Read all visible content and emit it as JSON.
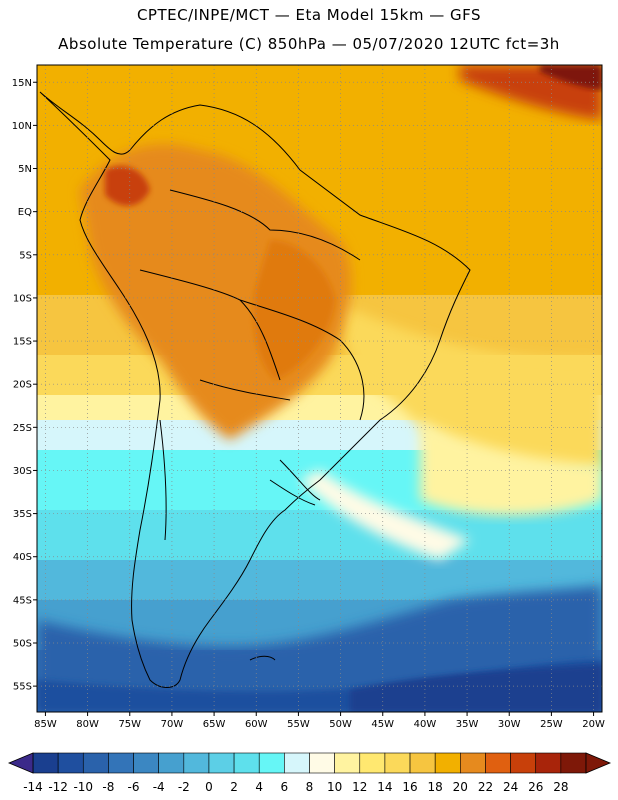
{
  "header": {
    "line1": "CPTEC/INPE/MCT —  Eta Model 15km — GFS",
    "line2": "Absolute Temperature (C) 850hPa — 05/07/2020 12UTC fct=3h"
  },
  "map": {
    "region": "South America",
    "lon_range": [
      -86,
      -19
    ],
    "lat_range": [
      -58,
      17
    ],
    "grid": true,
    "lat_labels": [
      "15N",
      "10N",
      "5N",
      "EQ",
      "5S",
      "10S",
      "15S",
      "20S",
      "25S",
      "30S",
      "35S",
      "40S",
      "45S",
      "50S",
      "55S"
    ],
    "lat_values": [
      15,
      10,
      5,
      0,
      -5,
      -10,
      -15,
      -20,
      -25,
      -30,
      -35,
      -40,
      -45,
      -50,
      -55
    ],
    "lon_labels": [
      "85W",
      "80W",
      "75W",
      "70W",
      "65W",
      "60W",
      "55W",
      "50W",
      "45W",
      "40W",
      "35W",
      "30W",
      "25W",
      "20W"
    ],
    "lon_values": [
      -85,
      -80,
      -75,
      -70,
      -65,
      -60,
      -55,
      -50,
      -45,
      -40,
      -35,
      -30,
      -25,
      -20
    ]
  },
  "colorbar": {
    "labels": [
      "-14",
      "-12",
      "-10",
      "-8",
      "-6",
      "-4",
      "-2",
      "0",
      "2",
      "4",
      "6",
      "8",
      "10",
      "12",
      "14",
      "16",
      "18",
      "20",
      "22",
      "24",
      "26",
      "28"
    ],
    "colors": [
      "#1a3f8f",
      "#1f4f9f",
      "#2a62ab",
      "#3374b8",
      "#3b87c2",
      "#46a0cf",
      "#52b8dc",
      "#5ccfe6",
      "#5ee0ec",
      "#66f6f6",
      "#d6f6fb",
      "#fffbe6",
      "#fff3a0",
      "#ffe870",
      "#fbd95a",
      "#f6c540",
      "#f2b000",
      "#e68a1e",
      "#e06010",
      "#c8400a",
      "#a8240a",
      "#7e1808"
    ]
  }
}
